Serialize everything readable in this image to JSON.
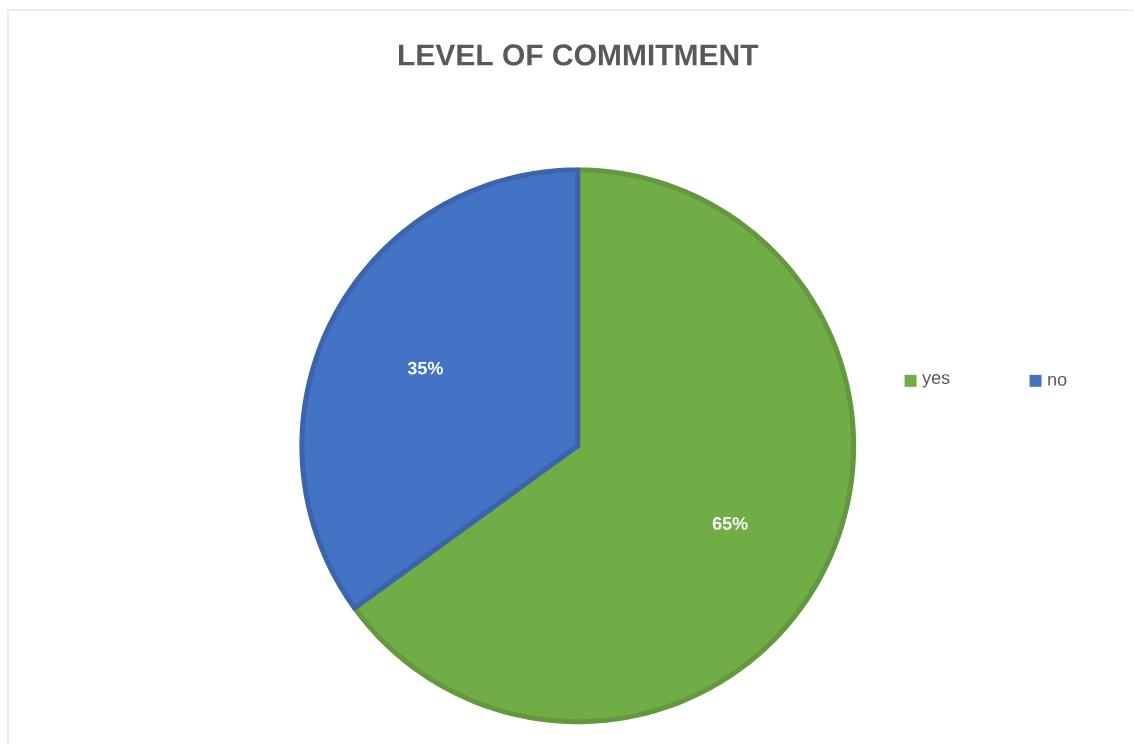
{
  "chart_data": {
    "type": "pie",
    "title": "LEVEL OF COMMITMENT",
    "categories": [
      "yes",
      "no"
    ],
    "values": [
      65,
      35
    ],
    "colors": [
      "#70ad47",
      "#4472c4"
    ],
    "value_labels": [
      "65%",
      "35%"
    ],
    "legend": "right"
  }
}
